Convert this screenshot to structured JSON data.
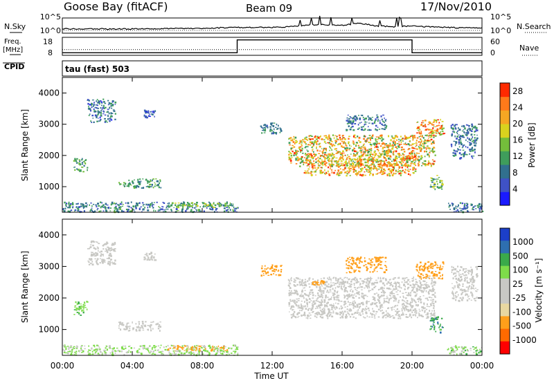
{
  "header": {
    "station": "Goose Bay (fitACF)",
    "beam": "Beam 09",
    "date": "17/Nov/2010"
  },
  "labels": {
    "nsky": "N.Sky",
    "nsearch": "N.Search",
    "freq": "Freq.",
    "freq_unit": "[MHz]",
    "nave": "Nave",
    "cpid": "CPID",
    "cpid_text": "tau (fast) 503",
    "noise_tick_top": "10^5",
    "noise_tick_bottom": "10^0",
    "freq_tick_top": "18",
    "freq_tick_bottom": "8",
    "nave_tick_top": "60",
    "nave_tick_bottom": "0",
    "xlabel": "Time UT",
    "ylabel": "Slant Range [km]",
    "power_cbar_label": "Power [dB]",
    "velocity_cbar_label": "Velocity [m s⁻¹]"
  },
  "colors": {
    "power": [
      "#1a1aff",
      "#3f52c6",
      "#31708e",
      "#3f9d5b",
      "#74bd3b",
      "#d9d21e",
      "#f5a623",
      "#ff7a1a",
      "#ff2a00"
    ],
    "velocity": [
      "#ff0000",
      "#ff6a00",
      "#ff9f1a",
      "#e8d7a0",
      "#c8c8c4",
      "#c8c8c4",
      "#7edc4a",
      "#3aaa4a",
      "#2e6fb0",
      "#1c3fc8"
    ]
  },
  "chart_data": [
    {
      "type": "line",
      "name": "noise",
      "x_ticks": [
        "00:00",
        "04:00",
        "08:00",
        "12:00",
        "16:00",
        "20:00",
        "00:00"
      ],
      "y_ticks_left": [
        "10^5",
        "10^0"
      ],
      "y_ticks_right": [
        "10^5",
        "10^0"
      ],
      "series": [
        {
          "name": "N.Sky",
          "x": [
            0,
            4,
            8,
            10,
            12,
            13,
            14,
            15,
            16,
            17,
            18,
            19,
            20,
            22,
            24
          ],
          "y": [
            0.2,
            0.2,
            0.25,
            0.3,
            0.3,
            0.35,
            0.45,
            0.5,
            0.45,
            0.6,
            0.4,
            0.35,
            0.4,
            0.3,
            0.25
          ]
        }
      ]
    },
    {
      "type": "line",
      "name": "frequency-nave",
      "x_ticks": [
        "00:00",
        "04:00",
        "08:00",
        "12:00",
        "16:00",
        "20:00",
        "00:00"
      ],
      "series": [
        {
          "name": "Freq.",
          "x": [
            0,
            10,
            10,
            20,
            20,
            24
          ],
          "y": [
            8,
            8,
            18,
            18,
            8,
            8
          ]
        },
        {
          "name": "Nave",
          "x": [
            0,
            24
          ],
          "y": [
            12,
            12
          ]
        }
      ]
    },
    {
      "type": "heatmap",
      "title": "Power",
      "xlabel": "Time UT",
      "ylabel": "Slant Range [km]",
      "xlim": [
        0,
        24
      ],
      "ylim": [
        180,
        4500
      ],
      "x_ticks": [
        "00:00",
        "04:00",
        "08:00",
        "12:00",
        "16:00",
        "20:00",
        "00:00"
      ],
      "y_ticks": [
        1000,
        2000,
        3000,
        4000
      ],
      "colorbar_label": "Power [dB]",
      "colorbar_ticks": [
        4,
        8,
        12,
        16,
        20,
        24,
        28
      ],
      "colorbar_range": [
        0,
        30
      ],
      "regions": [
        {
          "t0": 0.0,
          "t1": 10.0,
          "r0": 180,
          "r1": 500,
          "v0": 4,
          "v1": 14
        },
        {
          "t0": 6.0,
          "t1": 9.5,
          "r0": 320,
          "r1": 480,
          "v0": 10,
          "v1": 18
        },
        {
          "t0": 1.4,
          "t1": 3.0,
          "r0": 3050,
          "r1": 3800,
          "v0": 3,
          "v1": 12
        },
        {
          "t0": 4.6,
          "t1": 5.3,
          "r0": 3200,
          "r1": 3450,
          "v0": 3,
          "v1": 8
        },
        {
          "t0": 0.6,
          "t1": 1.4,
          "r0": 1450,
          "r1": 1900,
          "v0": 8,
          "v1": 16
        },
        {
          "t0": 3.2,
          "t1": 5.6,
          "r0": 950,
          "r1": 1250,
          "v0": 8,
          "v1": 16
        },
        {
          "t0": 12.9,
          "t1": 21.3,
          "r0": 1650,
          "r1": 2650,
          "v0": 10,
          "v1": 28
        },
        {
          "t0": 13.8,
          "t1": 20.2,
          "r0": 1350,
          "r1": 2050,
          "v0": 14,
          "v1": 28
        },
        {
          "t0": 20.2,
          "t1": 21.8,
          "r0": 2600,
          "r1": 3150,
          "v0": 14,
          "v1": 30
        },
        {
          "t0": 21.0,
          "t1": 21.7,
          "r0": 900,
          "r1": 1400,
          "v0": 8,
          "v1": 20
        },
        {
          "t0": 22.2,
          "t1": 23.7,
          "r0": 1900,
          "r1": 3000,
          "v0": 4,
          "v1": 12
        },
        {
          "t0": 22.0,
          "t1": 24.0,
          "r0": 180,
          "r1": 480,
          "v0": 4,
          "v1": 12
        },
        {
          "t0": 16.2,
          "t1": 18.5,
          "r0": 2800,
          "r1": 3300,
          "v0": 4,
          "v1": 12
        },
        {
          "t0": 11.3,
          "t1": 12.5,
          "r0": 2700,
          "r1": 3050,
          "v0": 6,
          "v1": 12
        }
      ]
    },
    {
      "type": "heatmap",
      "title": "Velocity",
      "xlabel": "Time UT",
      "ylabel": "Slant Range [km]",
      "xlim": [
        0,
        24
      ],
      "ylim": [
        180,
        4500
      ],
      "x_ticks": [
        "00:00",
        "04:00",
        "08:00",
        "12:00",
        "16:00",
        "20:00",
        "00:00"
      ],
      "y_ticks": [
        1000,
        2000,
        3000,
        4000
      ],
      "colorbar_label": "Velocity [m s⁻¹]",
      "colorbar_ticks": [
        1000,
        500,
        100,
        25,
        -25,
        -100,
        -500,
        -1000
      ],
      "regions": [
        {
          "t0": 0.0,
          "t1": 10.0,
          "r0": 180,
          "r1": 500,
          "v0": -25,
          "v1": 100
        },
        {
          "t0": 6.0,
          "t1": 9.5,
          "r0": 320,
          "r1": 480,
          "v0": -250,
          "v1": -50
        },
        {
          "t0": 1.4,
          "t1": 3.0,
          "r0": 3050,
          "r1": 3800,
          "v0": -25,
          "v1": 25
        },
        {
          "t0": 4.6,
          "t1": 5.3,
          "r0": 3200,
          "r1": 3450,
          "v0": -25,
          "v1": 25
        },
        {
          "t0": 0.6,
          "t1": 1.4,
          "r0": 1450,
          "r1": 1900,
          "v0": 50,
          "v1": 120
        },
        {
          "t0": 3.2,
          "t1": 5.6,
          "r0": 950,
          "r1": 1250,
          "v0": -25,
          "v1": 25
        },
        {
          "t0": 12.9,
          "t1": 21.3,
          "r0": 1350,
          "r1": 2650,
          "v0": -25,
          "v1": 25
        },
        {
          "t0": 20.2,
          "t1": 21.8,
          "r0": 2600,
          "r1": 3150,
          "v0": -400,
          "v1": -120
        },
        {
          "t0": 21.0,
          "t1": 21.7,
          "r0": 900,
          "r1": 1400,
          "v0": 80,
          "v1": 600
        },
        {
          "t0": 22.2,
          "t1": 23.7,
          "r0": 1900,
          "r1": 3000,
          "v0": -25,
          "v1": 25
        },
        {
          "t0": 22.0,
          "t1": 24.0,
          "r0": 180,
          "r1": 480,
          "v0": -25,
          "v1": 150
        },
        {
          "t0": 16.2,
          "t1": 18.5,
          "r0": 2800,
          "r1": 3300,
          "v0": -300,
          "v1": -100
        },
        {
          "t0": 14.2,
          "t1": 15.0,
          "r0": 2400,
          "r1": 2550,
          "v0": -300,
          "v1": -100
        },
        {
          "t0": 11.3,
          "t1": 12.5,
          "r0": 2700,
          "r1": 3050,
          "v0": -300,
          "v1": -100
        }
      ]
    }
  ]
}
